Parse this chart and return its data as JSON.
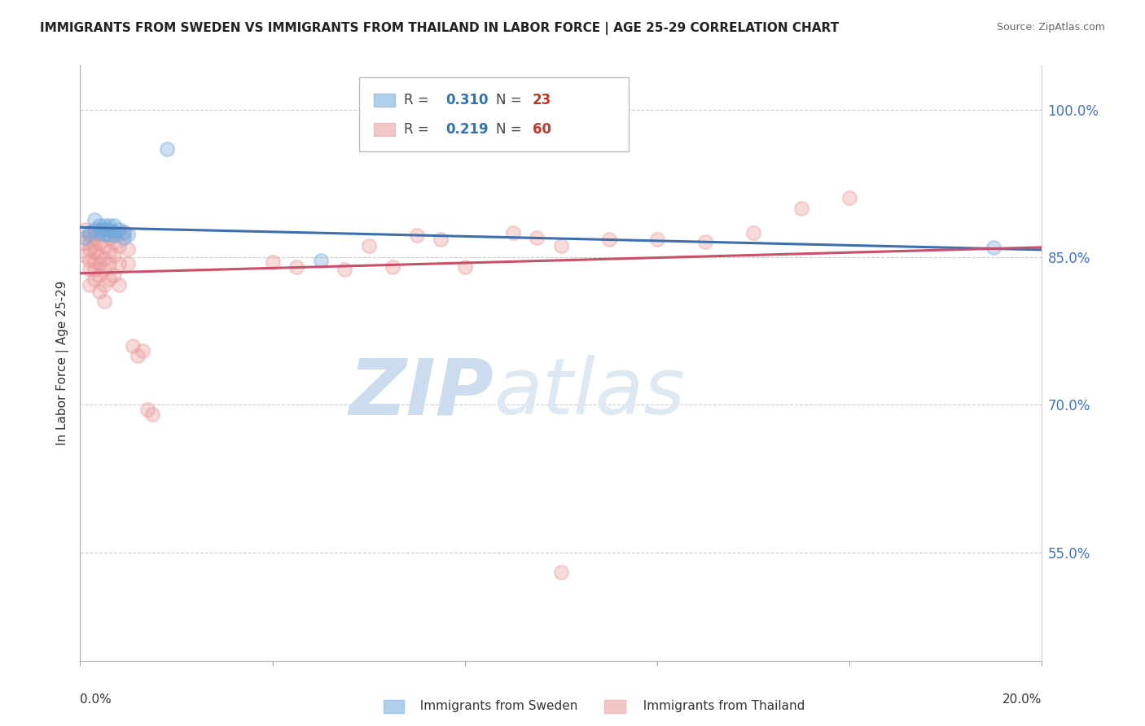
{
  "title": "IMMIGRANTS FROM SWEDEN VS IMMIGRANTS FROM THAILAND IN LABOR FORCE | AGE 25-29 CORRELATION CHART",
  "source": "Source: ZipAtlas.com",
  "ylabel": "In Labor Force | Age 25-29",
  "ytick_labels": [
    "100.0%",
    "85.0%",
    "70.0%",
    "55.0%"
  ],
  "ytick_values": [
    1.0,
    0.85,
    0.7,
    0.55
  ],
  "xlim": [
    0.0,
    0.2
  ],
  "ylim": [
    0.44,
    1.045
  ],
  "sweden_R": 0.31,
  "sweden_N": 23,
  "thailand_R": 0.219,
  "thailand_N": 60,
  "sweden_color": "#6fa8dc",
  "thailand_color": "#ea9999",
  "sweden_line_color": "#3d6faf",
  "thailand_line_color": "#c94f6a",
  "sweden_points": [
    [
      0.001,
      0.87
    ],
    [
      0.002,
      0.875
    ],
    [
      0.003,
      0.888
    ],
    [
      0.003,
      0.878
    ],
    [
      0.004,
      0.882
    ],
    [
      0.004,
      0.878
    ],
    [
      0.004,
      0.875
    ],
    [
      0.005,
      0.882
    ],
    [
      0.005,
      0.878
    ],
    [
      0.005,
      0.873
    ],
    [
      0.006,
      0.882
    ],
    [
      0.006,
      0.878
    ],
    [
      0.006,
      0.873
    ],
    [
      0.007,
      0.882
    ],
    [
      0.007,
      0.876
    ],
    [
      0.007,
      0.872
    ],
    [
      0.008,
      0.878
    ],
    [
      0.009,
      0.876
    ],
    [
      0.009,
      0.87
    ],
    [
      0.01,
      0.873
    ],
    [
      0.018,
      0.96
    ],
    [
      0.05,
      0.847
    ],
    [
      0.19,
      0.86
    ]
  ],
  "thailand_points": [
    [
      0.001,
      0.878
    ],
    [
      0.001,
      0.865
    ],
    [
      0.001,
      0.852
    ],
    [
      0.002,
      0.872
    ],
    [
      0.002,
      0.865
    ],
    [
      0.002,
      0.858
    ],
    [
      0.002,
      0.847
    ],
    [
      0.002,
      0.838
    ],
    [
      0.002,
      0.822
    ],
    [
      0.003,
      0.872
    ],
    [
      0.003,
      0.862
    ],
    [
      0.003,
      0.856
    ],
    [
      0.003,
      0.847
    ],
    [
      0.003,
      0.838
    ],
    [
      0.003,
      0.828
    ],
    [
      0.004,
      0.865
    ],
    [
      0.004,
      0.852
    ],
    [
      0.004,
      0.843
    ],
    [
      0.004,
      0.832
    ],
    [
      0.004,
      0.815
    ],
    [
      0.005,
      0.862
    ],
    [
      0.005,
      0.848
    ],
    [
      0.005,
      0.838
    ],
    [
      0.005,
      0.822
    ],
    [
      0.005,
      0.805
    ],
    [
      0.006,
      0.87
    ],
    [
      0.006,
      0.856
    ],
    [
      0.006,
      0.843
    ],
    [
      0.006,
      0.828
    ],
    [
      0.007,
      0.865
    ],
    [
      0.007,
      0.852
    ],
    [
      0.007,
      0.832
    ],
    [
      0.008,
      0.862
    ],
    [
      0.008,
      0.843
    ],
    [
      0.008,
      0.822
    ],
    [
      0.009,
      0.875
    ],
    [
      0.01,
      0.858
    ],
    [
      0.01,
      0.843
    ],
    [
      0.011,
      0.76
    ],
    [
      0.012,
      0.75
    ],
    [
      0.013,
      0.755
    ],
    [
      0.014,
      0.695
    ],
    [
      0.015,
      0.69
    ],
    [
      0.04,
      0.845
    ],
    [
      0.045,
      0.84
    ],
    [
      0.055,
      0.838
    ],
    [
      0.06,
      0.862
    ],
    [
      0.065,
      0.84
    ],
    [
      0.07,
      0.872
    ],
    [
      0.075,
      0.868
    ],
    [
      0.08,
      0.84
    ],
    [
      0.09,
      0.875
    ],
    [
      0.095,
      0.87
    ],
    [
      0.1,
      0.862
    ],
    [
      0.11,
      0.868
    ],
    [
      0.12,
      0.868
    ],
    [
      0.13,
      0.866
    ],
    [
      0.14,
      0.875
    ],
    [
      0.15,
      0.9
    ],
    [
      0.16,
      0.91
    ],
    [
      0.1,
      0.53
    ]
  ]
}
